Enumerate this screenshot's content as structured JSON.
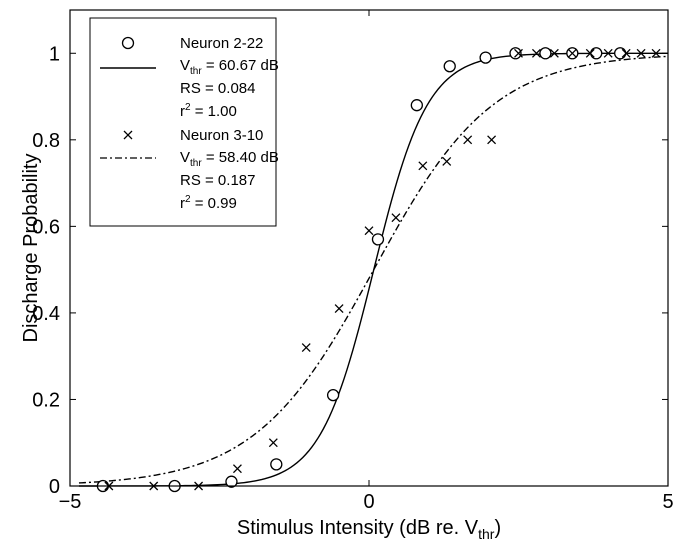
{
  "chart_data": {
    "type": "scatter",
    "title": "",
    "xlabel": "Stimulus Intensity (dB re. V",
    "xlabel_sub": "thr",
    "xlabel_close": ")",
    "ylabel": "Discharge Probability",
    "xlim": [
      -5,
      5
    ],
    "ylim": [
      0,
      1.1
    ],
    "xticks": [
      -5,
      0,
      5
    ],
    "xtick_labels": [
      "−5",
      "0",
      "5"
    ],
    "yticks": [
      0,
      0.2,
      0.4,
      0.6,
      0.8,
      1
    ],
    "ytick_labels": [
      "0",
      "0.2",
      "0.4",
      "0.6",
      "0.8",
      "1"
    ],
    "grid": false,
    "legend_position": "top-left",
    "series": [
      {
        "name": "Neuron 2-22",
        "marker": "circle",
        "line_style": "solid",
        "fit": {
          "rs": 0.084
        },
        "points": [
          {
            "x": -4.45,
            "y": 0.0
          },
          {
            "x": -3.25,
            "y": 0.0
          },
          {
            "x": -2.3,
            "y": 0.01
          },
          {
            "x": -1.55,
            "y": 0.05
          },
          {
            "x": -0.6,
            "y": 0.21
          },
          {
            "x": 0.15,
            "y": 0.57
          },
          {
            "x": 0.8,
            "y": 0.88
          },
          {
            "x": 1.35,
            "y": 0.97
          },
          {
            "x": 1.95,
            "y": 0.99
          },
          {
            "x": 2.45,
            "y": 1.0
          },
          {
            "x": 2.95,
            "y": 1.0
          },
          {
            "x": 3.4,
            "y": 1.0
          },
          {
            "x": 3.8,
            "y": 1.0
          },
          {
            "x": 4.2,
            "y": 1.0
          }
        ]
      },
      {
        "name": "Neuron 3-10",
        "marker": "cross",
        "line_style": "dashdot",
        "fit": {
          "rs": 0.187
        },
        "points": [
          {
            "x": -4.35,
            "y": 0.0
          },
          {
            "x": -3.6,
            "y": 0.0
          },
          {
            "x": -2.85,
            "y": 0.0
          },
          {
            "x": -2.2,
            "y": 0.04
          },
          {
            "x": -1.6,
            "y": 0.1
          },
          {
            "x": -1.05,
            "y": 0.32
          },
          {
            "x": -0.5,
            "y": 0.41
          },
          {
            "x": 0.0,
            "y": 0.59
          },
          {
            "x": 0.45,
            "y": 0.62
          },
          {
            "x": 0.9,
            "y": 0.74
          },
          {
            "x": 1.3,
            "y": 0.75
          },
          {
            "x": 1.65,
            "y": 0.8
          },
          {
            "x": 2.05,
            "y": 0.8
          },
          {
            "x": 2.5,
            "y": 1.0
          },
          {
            "x": 2.8,
            "y": 1.0
          },
          {
            "x": 3.1,
            "y": 1.0
          },
          {
            "x": 3.4,
            "y": 1.0
          },
          {
            "x": 3.7,
            "y": 1.0
          },
          {
            "x": 4.0,
            "y": 1.0
          },
          {
            "x": 4.3,
            "y": 1.0
          },
          {
            "x": 4.55,
            "y": 1.0
          },
          {
            "x": 4.8,
            "y": 1.0
          }
        ]
      }
    ],
    "legend": [
      {
        "name": "Neuron 2-22",
        "vthr_prefix": "V",
        "vthr_sub": "thr",
        "vthr_value": " = 60.67 dB",
        "rs": "RS = 0.084",
        "r2_prefix": "r",
        "r2_sup": "2",
        "r2_value": " = 1.00"
      },
      {
        "name": "Neuron 3-10",
        "vthr_prefix": "V",
        "vthr_sub": "thr",
        "vthr_value": " = 58.40 dB",
        "rs": "RS = 0.187",
        "r2_prefix": "r",
        "r2_sup": "2",
        "r2_value": " = 0.99"
      }
    ]
  }
}
